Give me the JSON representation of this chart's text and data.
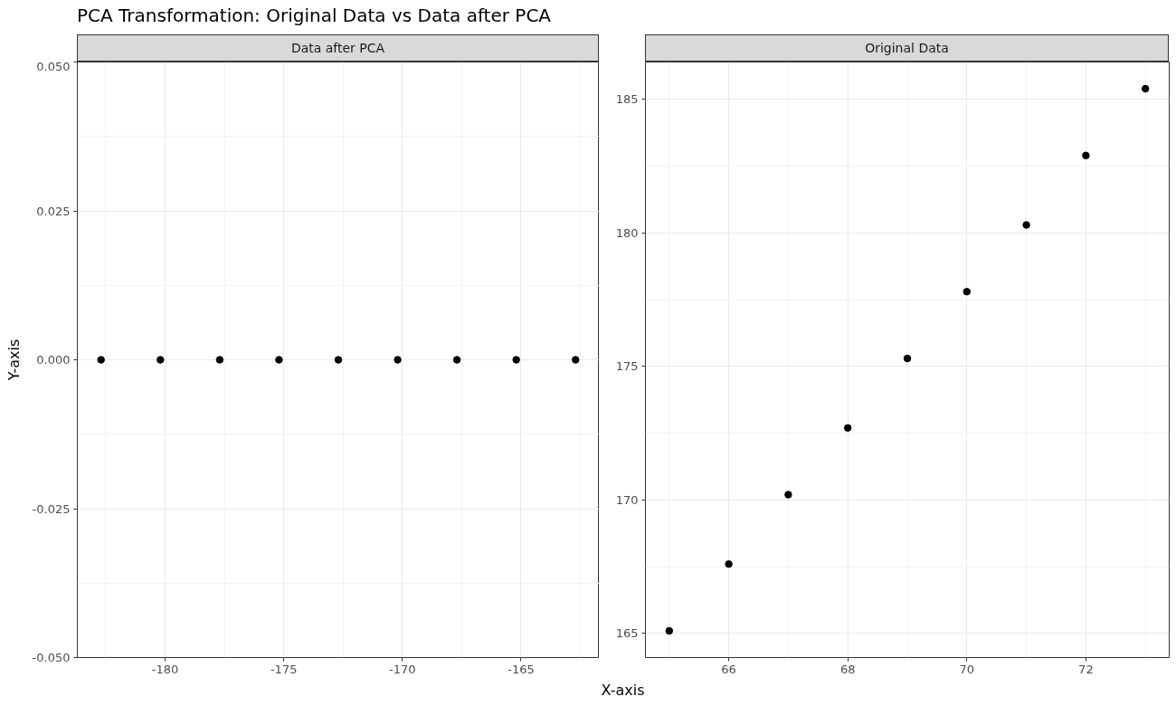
{
  "chart_data": [
    {
      "type": "scatter",
      "title": "PCA Transformation: Original Data vs Data after PCA",
      "subtitle": "Data after PCA",
      "ylabel": "Y-axis",
      "x": [
        -182.7,
        -180.2,
        -177.7,
        -175.2,
        -172.7,
        -170.2,
        -167.7,
        -165.2,
        -162.7
      ],
      "values": [
        0,
        0,
        0,
        0,
        0,
        0,
        0,
        0,
        0
      ],
      "color": "#000000",
      "marker": "circle",
      "xlim": [
        -183.7,
        -161.7
      ],
      "xticks": [
        -180,
        -175,
        -170,
        -165
      ],
      "ylim": [
        -0.05,
        0.05
      ],
      "yticks": [
        {
          "value": -0.05,
          "label": "-0.050"
        },
        -0.025,
        {
          "value": 0,
          "label": "0.000"
        },
        0.025,
        {
          "value": 0.05,
          "label": "0.050"
        }
      ],
      "grid": true
    },
    {
      "type": "scatter",
      "subtitle": "Original Data",
      "xlabel": "X-axis",
      "x": [
        65,
        66,
        67,
        68,
        69,
        70,
        71,
        72,
        73
      ],
      "values": [
        165.1,
        167.6,
        170.2,
        172.7,
        175.3,
        177.8,
        180.3,
        182.9,
        185.4
      ],
      "color": "#000000",
      "marker": "circle",
      "xlim": [
        64.6,
        73.4
      ],
      "xticks": [
        66,
        68,
        70,
        72
      ],
      "ylim": [
        164.1,
        186.4
      ],
      "yticks": [
        165,
        170,
        175,
        180,
        185
      ],
      "grid": true
    }
  ]
}
